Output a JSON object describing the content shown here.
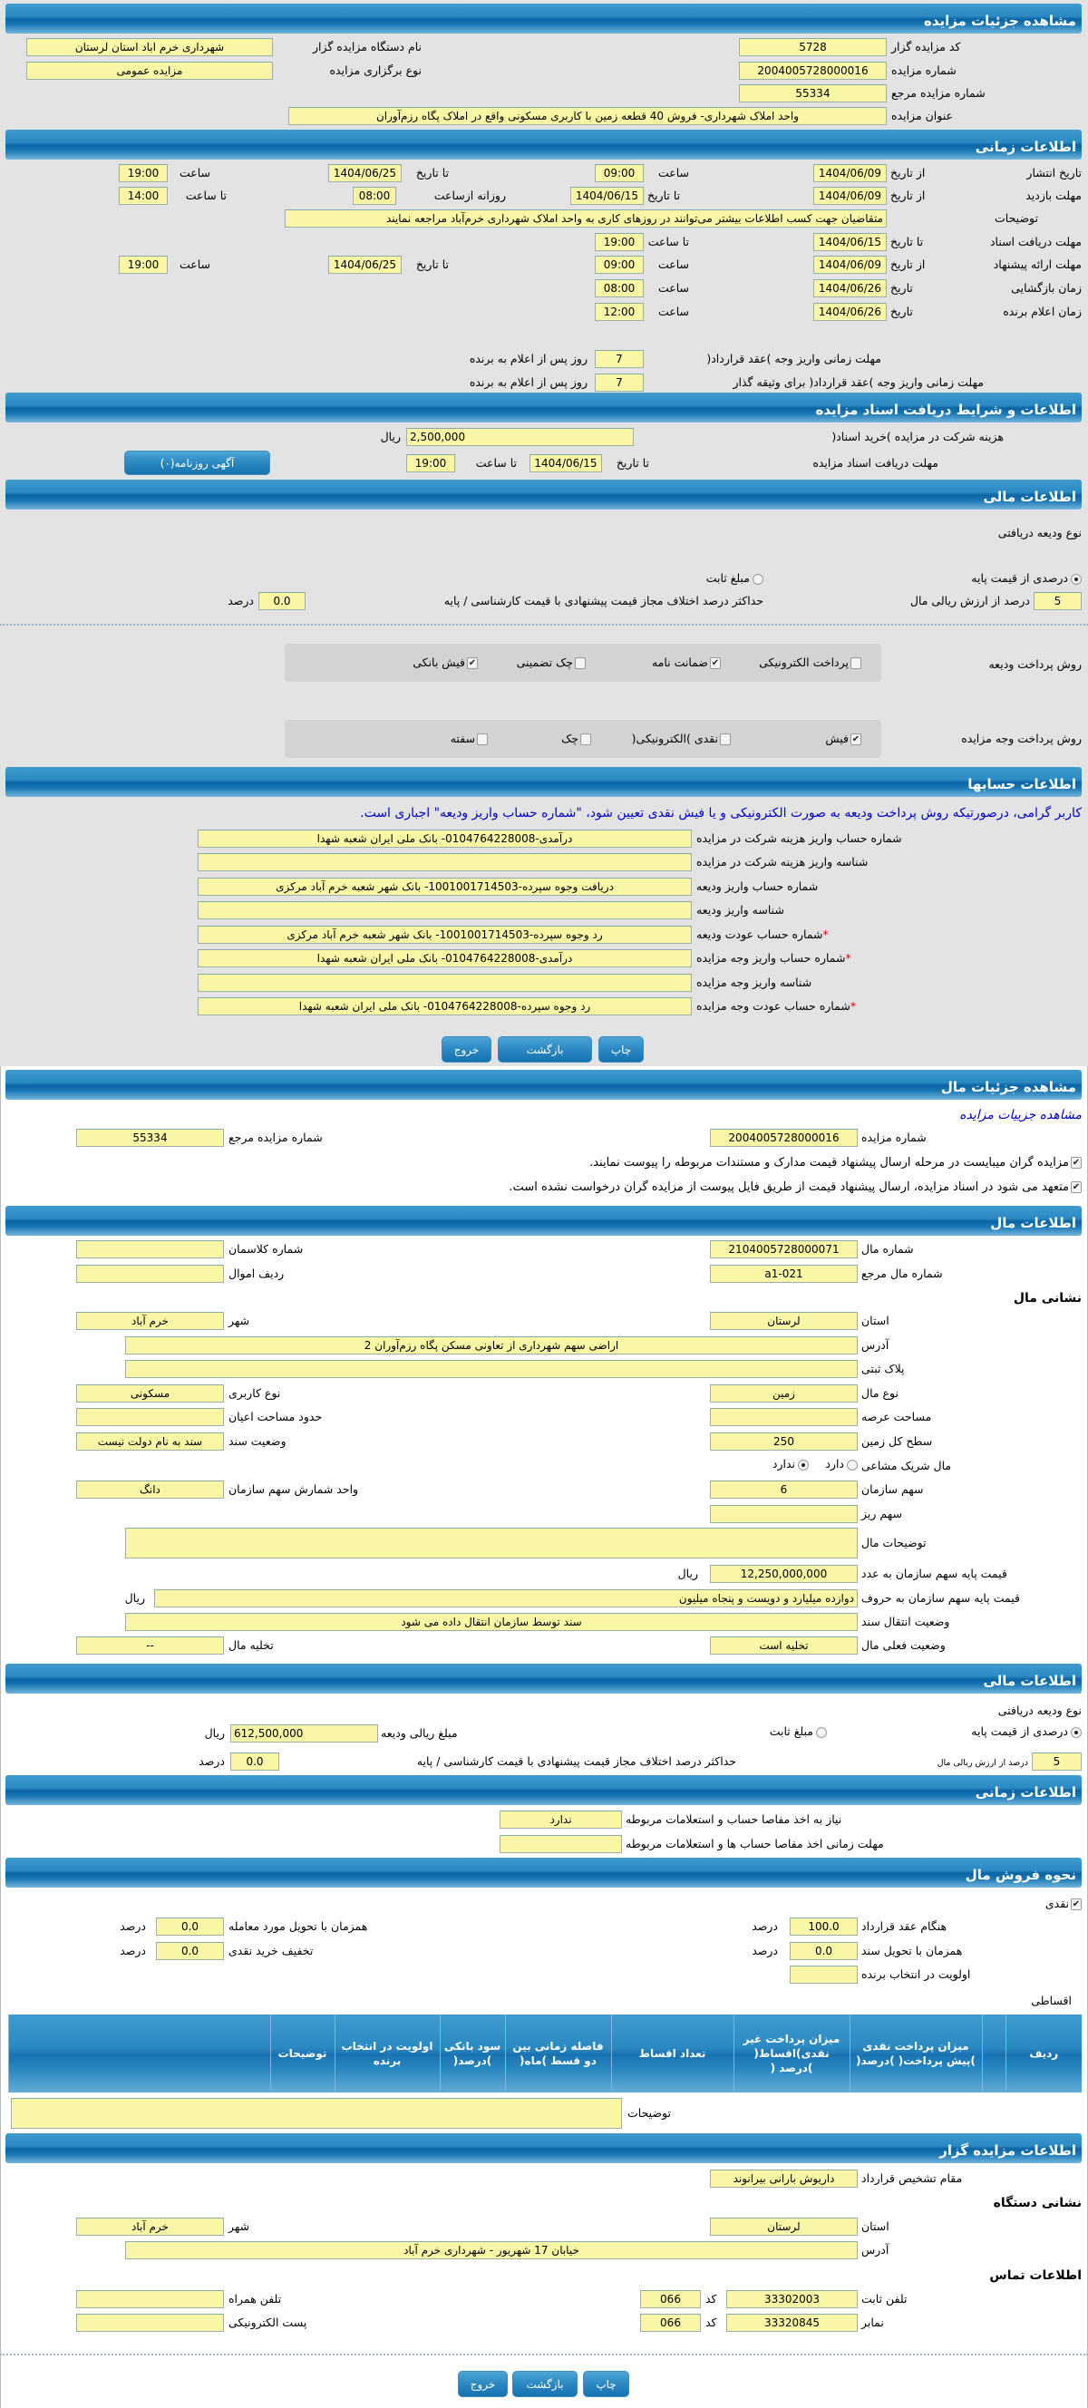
{
  "auction": {
    "title": "مشاهده جزئیات مزایده",
    "code_label": "کد مزایده گزار",
    "code": "5728",
    "org_label": "نام دستگاه مزایده گزار",
    "org": "شهرداری خرم اباد استان لرستان",
    "number_label": "شماره مزایده",
    "number": "2004005728000016",
    "type_label": "نوع برگزاری مزایده",
    "type": "مزایده عمومی",
    "ref_label": "شماره مزایده مرجع",
    "ref": "55334",
    "subject_label": "عنوان مزایده",
    "subject": "واحد املاک شهرداری- فروش 40 قطعه زمین با کاربری مسکونی واقع در املاک پگاه رزم‌آوران"
  },
  "timing": {
    "title": "اطلاعات زمانی",
    "hour": "ساعت",
    "to_date": "تا تاریخ",
    "from_date": "از تاریخ",
    "date": "تاریخ",
    "to_hour": "تا ساعت",
    "daily_from": "روزانه ازساعت",
    "publish": {
      "label": "تاریخ انتشار",
      "from": "1404/06/09",
      "from_time": "09:00",
      "to": "1404/06/25",
      "to_time": "19:00"
    },
    "visit": {
      "label": "مهلت بازدید",
      "from": "1404/06/09",
      "to": "1404/06/15",
      "daily_from": "08:00",
      "daily_to": "14:00"
    },
    "notes": {
      "label": "توضیحات",
      "value": "متقاضیان جهت کسب اطلاعات بیشتر می‌توانند در روزهای کاری به واحد املاک شهرداری خرم‌آباد مراجعه نمایند"
    },
    "docs": {
      "label": "مهلت دریافت اسناد",
      "to": "1404/06/15",
      "to_time": "19:00"
    },
    "offer": {
      "label": "مهلت ارائه پیشنهاد",
      "from": "1404/06/09",
      "from_time": "09:00",
      "to": "1404/06/25",
      "to_time": "19:00"
    },
    "opening": {
      "label": "زمان بازگشایی",
      "date": "1404/06/26",
      "time": "08:00"
    },
    "winner": {
      "label": "زمان اعلام برنده",
      "date": "1404/06/26",
      "time": "12:00"
    },
    "pay1": {
      "label": "مهلت زمانی واریز وجه )عقد قرارداد(",
      "value": "7",
      "suffix": "روز پس از اعلام به برنده"
    },
    "pay2": {
      "label": "مهلت زمانی واریز وجه )عقد قرارداد( برای وثیقه گذار",
      "value": "7",
      "suffix": "روز پس از اعلام به برنده"
    }
  },
  "docs": {
    "title": "اطلاعات و شرایط دریافت اسناد مزایده",
    "fee_label": "هزینه شرکت در مزایده )خرید اسناد(",
    "fee": "2,500,000",
    "currency": "ریال",
    "deadline_label": "مهلت دریافت اسناد مزایده",
    "to_date_label": "تا تاریخ",
    "to_date": "1404/06/15",
    "to_time_label": "تا ساعت",
    "to_time": "19:00",
    "newspaper_button": "آگهی روزنامه(۰)"
  },
  "finance": {
    "title": "اطلاعات مالی",
    "deposit_type_label": "نوع ودیعه دریافتی",
    "option_percent": "درصدی از قیمت پایه",
    "option_fixed": "مبلغ ثابت",
    "selected": "درصدی از قیمت پایه",
    "percent": "5",
    "percent_label": "درصد از ارزش ریالی مال",
    "max_diff_label": "حداکثر درصد اختلاف مجاز قیمت پیشنهادی با قیمت کارشناسی / پایه",
    "max_diff": "0.0",
    "percent_unit": "درصد",
    "deposit_method_label": "روش پرداخت ودیعه",
    "deposit_methods": [
      {
        "label": "پرداخت الکترونیکی",
        "checked": false
      },
      {
        "label": "ضمانت نامه",
        "checked": true
      },
      {
        "label": "چک تضمینی",
        "checked": false
      },
      {
        "label": "فیش بانکی",
        "checked": true
      }
    ],
    "payment_method_label": "روش پرداخت وجه مزایده",
    "payment_methods": [
      {
        "label": "فیش",
        "checked": true
      },
      {
        "label": "نقدی )الکترونیکی(",
        "checked": false
      },
      {
        "label": "چک",
        "checked": false
      },
      {
        "label": "سفته",
        "checked": false
      }
    ]
  },
  "accounts": {
    "title": "اطلاعات حسابها",
    "notice": "کاربر گرامی، درصورتیکه روش پرداخت ودیعه به صورت الکترونیکی و یا فیش نقدی تعیین شود، \"شماره حساب واریز ودیعه\" اجباری است.",
    "required_mark": "*",
    "rows": [
      {
        "label": "شماره حساب واریز هزینه شرکت در مزایده",
        "value": "درآمدی-0104764228008- بانک ملی ایران شعبه شهدا"
      },
      {
        "label": "شناسه واریز هزینه شرکت در مزایده",
        "value": ""
      },
      {
        "label": "شماره حساب واریز ودیعه",
        "value": "دریافت وجوه سپرده-1001001714503- بانک شهر شعبه خرم آباد مرکزی"
      },
      {
        "label": "شناسه واریز ودیعه",
        "value": ""
      },
      {
        "label": "شماره حساب عودت ودیعه",
        "value": "رد وجوه سپرده-1001001714503- بانک شهر شعبه خرم آباد مرکزی"
      },
      {
        "label": "شماره حساب واریز وجه مزایده",
        "value": "درآمدی-0104764228008- بانک ملی ایران شعبه شهدا"
      },
      {
        "label": "شناسه واریز وجه مزایده",
        "value": ""
      },
      {
        "label": "شماره حساب عودت وجه مزایده",
        "value": "رد وجوه سپرده-0104764228008- بانک ملی ایران شعبه شهدا"
      }
    ]
  },
  "buttons": {
    "print": "چاپ",
    "back": "بازگشت",
    "exit": "خروج"
  },
  "item": {
    "title": "مشاهده جزئیات مال",
    "auction_link": "مشاهده جزییات مزایده",
    "auction_number_label": "شماره مزایده",
    "auction_number": "2004005728000016",
    "ref_label": "شماره مزایده مرجع",
    "ref": "55334",
    "check1": "مزایده گران میبایست در مرحله ارسال پیشنهاد قیمت مدارک و مستندات مربوطه را پیوست نمایند.",
    "check2": "متعهد می شود در اسناد مزایده، ارسال پیشنهاد قیمت از طریق فایل پیوست از مزایده گران درخواست نشده است."
  },
  "property": {
    "title": "اطلاعات مال",
    "number_label": "شماره مال",
    "number": "2104005728000071",
    "class_label": "شماره کلاسمان",
    "class": "",
    "ref_label": "شماره مال مرجع",
    "ref": "a1-021",
    "row_label": "ردیف اموال",
    "row": "",
    "address_heading": "نشانی مال",
    "province_label": "استان",
    "province": "لرستان",
    "city_label": "شهر",
    "city": "خرم آباد",
    "address_label": "آدرس",
    "address": "اراضی سهم شهرداری از تعاونی مسکن پگاه رزم‌آوران 2",
    "plate_label": "پلاک ثبتی",
    "plate": "",
    "kind_label": "نوع مال",
    "kind": "زمین",
    "usage_label": "نوع کاربری",
    "usage": "مسکونی",
    "area_label": "مساحت عرصه",
    "area": "",
    "building_label": "حدود مساحت اعیان",
    "building": "",
    "total_label": "سطح کل زمین",
    "total": "250",
    "deed_label": "وضعیت سند",
    "deed": "سند به نام دولت نیست",
    "shared_label": "مال شریک مشاعی",
    "shared_yes": "دارد",
    "shared_no": "ندارد",
    "shared_selected": "ندارد",
    "share_label": "سهم سازمان",
    "share": "6",
    "share_unit_label": "واحد شمارش سهم سازمان",
    "share_unit": "دانگ",
    "subshare_label": "سهم ریز",
    "subshare": "",
    "desc_label": "توضیحات مال",
    "desc": "",
    "price_label": "قیمت پایه سهم سازمان به عدد",
    "price": "12,250,000,000",
    "currency": "ریال",
    "price_words_label": "قیمت پایه سهم سازمان به حروف",
    "price_words": "دوازده میلیارد و دویست و پنجاه میلیون",
    "transfer_label": "وضعیت انتقال سند",
    "transfer": "سند توسط سازمان انتقال داده می شود",
    "status_label": "وضعیت فعلی مال",
    "status": "تخلیه است",
    "evac_label": "تخلیه مال",
    "evac": "--"
  },
  "finance2": {
    "title": "اطلاعات مالی",
    "deposit_type_label": "نوع ودیعه دریافتی",
    "option_percent": "درصدی از قیمت پایه",
    "option_fixed": "مبلغ ثابت",
    "selected": "درصدی از قیمت پایه",
    "deposit_amount_label": "مبلغ ریالی ودیعه",
    "deposit_amount": "612,500,000",
    "currency": "ریال",
    "percent": "5",
    "percent_label": "درصد از ارزش ریالی مال",
    "max_diff_label": "حداکثر درصد اختلاف مجاز قیمت پیشنهادی با قیمت کارشناسی / پایه",
    "max_diff": "0.0",
    "percent_unit": "درصد"
  },
  "timing2": {
    "title": "اطلاعات زمانی",
    "clearance_label": "نیاز به اخذ مفاصا حساب و استعلامات مربوطه",
    "clearance": "ندارد",
    "clearance_deadline_label": "مهلت زمانی اخذ مفاصا حساب ها و استعلامات مربوطه",
    "clearance_deadline": ""
  },
  "sale": {
    "title": "نحوه فروش مال",
    "cash_label": "نقدی",
    "cash_checked": true,
    "percent_unit": "درصد",
    "contract_label": "هنگام عقد قرارداد",
    "contract": "100.0",
    "delivery_label": "همزمان با تحویل مورد معامله",
    "delivery": "0.0",
    "deed_label": "همزمان با تحویل سند",
    "deed": "0.0",
    "discount_label": "تخفیف خرید نقدی",
    "discount": "0.0",
    "priority_label": "اولویت در انتخاب برنده",
    "priority": "",
    "installments_label": "اقساطی",
    "columns": [
      "ردیف",
      "",
      "میزان پرداخت نقدی )پیش پرداخت( )درصد(",
      "میزان پرداخت غیر نقدی)اقساط( )درصد (",
      "تعداد اقساط",
      "فاصله زمانی بین دو قسط )ماه(",
      "سود بانکی )درصد(",
      "اولویت در انتخاب برنده",
      "توضیحات",
      ""
    ],
    "notes_label": "توضیحات",
    "notes": ""
  },
  "auctioneer": {
    "title": "اطلاعات مزایده گزار",
    "authority_label": "مقام تشخیص قرارداد",
    "authority": "داریوش بارانی بیرانوند",
    "address_heading": "نشانی دستگاه",
    "province_label": "استان",
    "province": "لرستان",
    "city_label": "شهر",
    "city": "خرم آباد",
    "address_label": "آدرس",
    "address": "خیابان 17 شهریور - شهرداری خرم آباد",
    "contact_heading": "اطلاعات تماس",
    "phone_label": "تلفن ثابت",
    "phone": "33302003",
    "code_label": "کد",
    "phone_code": "066",
    "mobile_label": "تلفن همراه",
    "mobile": "",
    "fax_label": "نمابر",
    "fax": "33320845",
    "fax_code": "066",
    "email_label": "پست الکترونیکی",
    "email": ""
  },
  "colors": {
    "header": "#1a77b4",
    "field": "#f9f7a6",
    "notice": "#0000cc",
    "page1_bg": "#e3e3e3"
  }
}
